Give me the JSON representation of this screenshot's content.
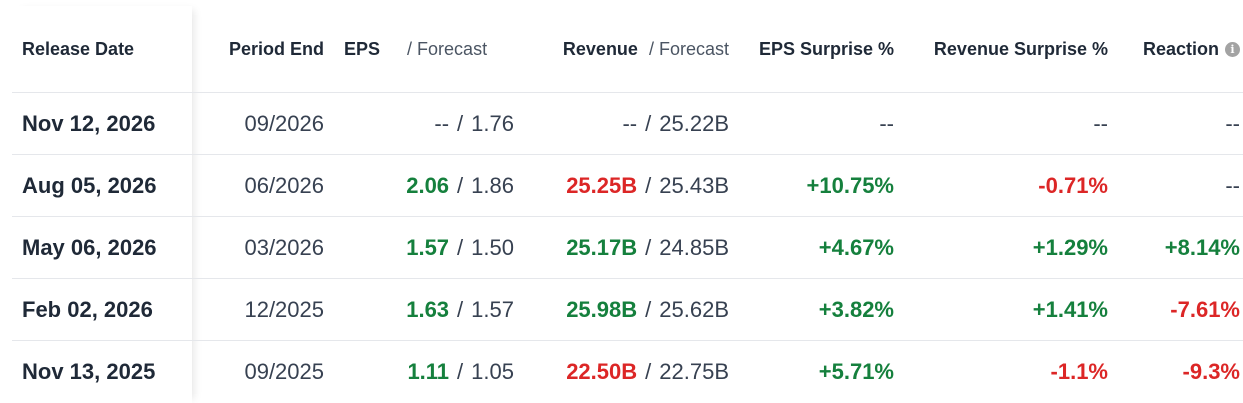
{
  "headers": {
    "release_date": "Release Date",
    "period_end": "Period End",
    "eps": "EPS",
    "eps_forecast": "/ Forecast",
    "revenue": "Revenue",
    "revenue_forecast": "/ Forecast",
    "eps_surprise": "EPS Surprise %",
    "revenue_surprise": "Revenue Surprise %",
    "reaction": "Reaction",
    "reaction_info_icon": "info-icon"
  },
  "colors": {
    "positive": "#15803d",
    "negative": "#dc2626",
    "neutral": "#374151"
  },
  "rows": [
    {
      "release_date": "Nov 12, 2026",
      "period_end": "09/2026",
      "eps": "--",
      "eps_tone": "neutral",
      "eps_forecast": "1.76",
      "revenue": "--",
      "revenue_tone": "neutral",
      "revenue_forecast": "25.22B",
      "eps_surprise": "--",
      "eps_surprise_tone": "neutral",
      "revenue_surprise": "--",
      "revenue_surprise_tone": "neutral",
      "reaction": "--",
      "reaction_tone": "neutral"
    },
    {
      "release_date": "Aug 05, 2026",
      "period_end": "06/2026",
      "eps": "2.06",
      "eps_tone": "pos",
      "eps_forecast": "1.86",
      "revenue": "25.25B",
      "revenue_tone": "neg",
      "revenue_forecast": "25.43B",
      "eps_surprise": "+10.75%",
      "eps_surprise_tone": "pos",
      "revenue_surprise": "-0.71%",
      "revenue_surprise_tone": "neg",
      "reaction": "--",
      "reaction_tone": "neutral"
    },
    {
      "release_date": "May 06, 2026",
      "period_end": "03/2026",
      "eps": "1.57",
      "eps_tone": "pos",
      "eps_forecast": "1.50",
      "revenue": "25.17B",
      "revenue_tone": "pos",
      "revenue_forecast": "24.85B",
      "eps_surprise": "+4.67%",
      "eps_surprise_tone": "pos",
      "revenue_surprise": "+1.29%",
      "revenue_surprise_tone": "pos",
      "reaction": "+8.14%",
      "reaction_tone": "pos"
    },
    {
      "release_date": "Feb 02, 2026",
      "period_end": "12/2025",
      "eps": "1.63",
      "eps_tone": "pos",
      "eps_forecast": "1.57",
      "revenue": "25.98B",
      "revenue_tone": "pos",
      "revenue_forecast": "25.62B",
      "eps_surprise": "+3.82%",
      "eps_surprise_tone": "pos",
      "revenue_surprise": "+1.41%",
      "revenue_surprise_tone": "pos",
      "reaction": "-7.61%",
      "reaction_tone": "neg"
    },
    {
      "release_date": "Nov 13, 2025",
      "period_end": "09/2025",
      "eps": "1.11",
      "eps_tone": "pos",
      "eps_forecast": "1.05",
      "revenue": "22.50B",
      "revenue_tone": "neg",
      "revenue_forecast": "22.75B",
      "eps_surprise": "+5.71%",
      "eps_surprise_tone": "pos",
      "revenue_surprise": "-1.1%",
      "revenue_surprise_tone": "neg",
      "reaction": "-9.3%",
      "reaction_tone": "neg"
    }
  ]
}
